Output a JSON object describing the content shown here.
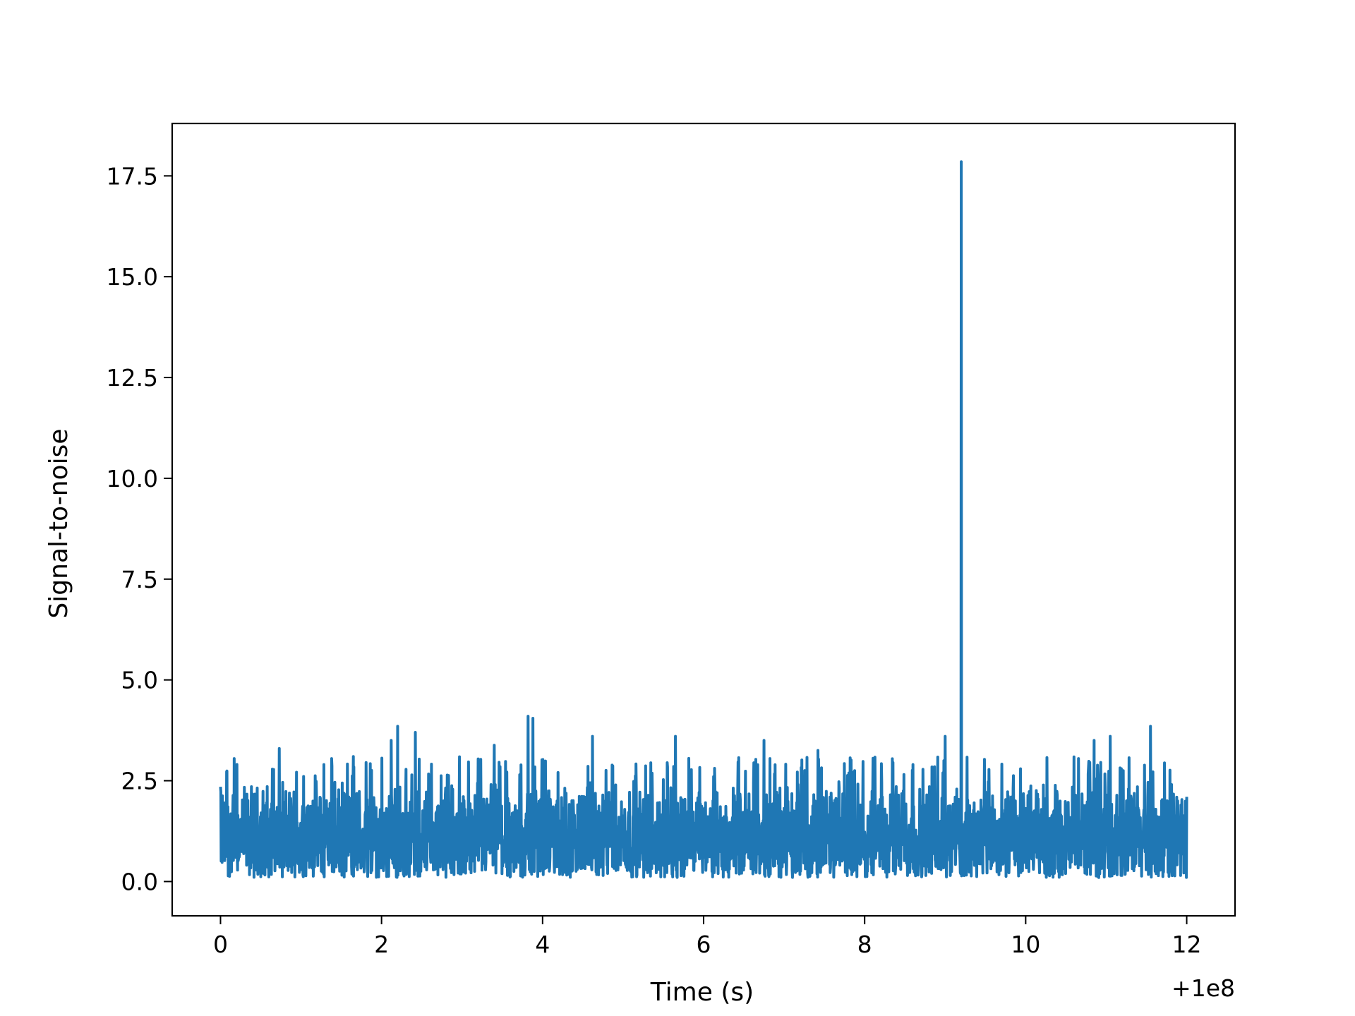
{
  "chart_data": {
    "type": "line",
    "title": "",
    "xlabel": "Time (s)",
    "ylabel": "Signal-to-noise",
    "x_offset_label": "+1e8",
    "xlim": [
      -0.6,
      12.6
    ],
    "ylim": [
      -0.85,
      18.8
    ],
    "xticks": [
      0,
      2,
      4,
      6,
      8,
      10,
      12
    ],
    "xtick_labels": [
      "0",
      "2",
      "4",
      "6",
      "8",
      "10",
      "12"
    ],
    "yticks": [
      0.0,
      2.5,
      5.0,
      7.5,
      10.0,
      12.5,
      15.0,
      17.5
    ],
    "ytick_labels": [
      "0.0",
      "2.5",
      "5.0",
      "7.5",
      "10.0",
      "12.5",
      "15.0",
      "17.5"
    ],
    "grid": false,
    "color": "#1f77b4",
    "series": [
      {
        "name": "",
        "x_range": [
          0,
          12
        ],
        "noise_floor_typical": [
          0.1,
          2.6
        ],
        "peaks": [
          {
            "x": 0.0,
            "y": 2.35
          },
          {
            "x": 0.17,
            "y": 3.05
          },
          {
            "x": 0.73,
            "y": 3.3
          },
          {
            "x": 1.38,
            "y": 3.05
          },
          {
            "x": 1.65,
            "y": 3.1
          },
          {
            "x": 2.12,
            "y": 3.5
          },
          {
            "x": 2.2,
            "y": 3.85
          },
          {
            "x": 2.42,
            "y": 3.7
          },
          {
            "x": 3.4,
            "y": 3.38
          },
          {
            "x": 3.82,
            "y": 4.1
          },
          {
            "x": 3.88,
            "y": 4.05
          },
          {
            "x": 4.62,
            "y": 3.6
          },
          {
            "x": 5.65,
            "y": 3.6
          },
          {
            "x": 6.75,
            "y": 3.5
          },
          {
            "x": 7.42,
            "y": 3.25
          },
          {
            "x": 9.0,
            "y": 3.6
          },
          {
            "x": 9.2,
            "y": 17.85
          },
          {
            "x": 10.85,
            "y": 3.5
          },
          {
            "x": 11.05,
            "y": 3.6
          },
          {
            "x": 11.55,
            "y": 3.85
          },
          {
            "x": 12.0,
            "y": 2.1
          }
        ]
      }
    ]
  }
}
